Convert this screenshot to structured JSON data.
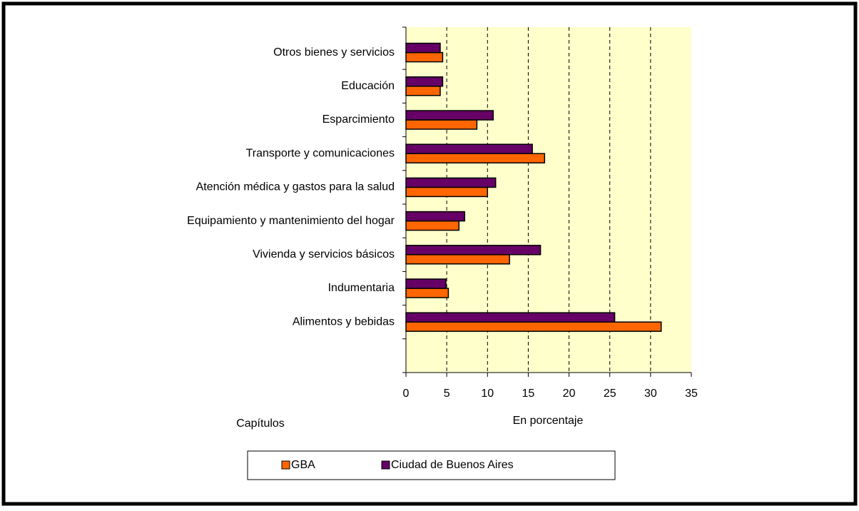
{
  "chart_data": {
    "type": "bar",
    "orientation": "horizontal",
    "x_label": "En porcentaje",
    "y_label": "Capítulos",
    "categories": [
      "Otros bienes y servicios",
      "Educación",
      "Esparcimiento",
      "Transporte y comunicaciones",
      "Atención médica y gastos para la salud",
      "Equipamiento y mantenimiento del hogar",
      "Vivienda y servicios básicos",
      "Indumentaria",
      "Alimentos y bebidas",
      null
    ],
    "series": [
      {
        "name": "GBA",
        "color": "#ff6600",
        "values": [
          4.5,
          4.2,
          8.7,
          17.0,
          10.0,
          6.5,
          12.7,
          5.2,
          31.3,
          null
        ]
      },
      {
        "name": "Ciudad de Buenos Aires",
        "color": "#660066",
        "values": [
          4.2,
          4.5,
          10.7,
          15.5,
          11.0,
          7.2,
          16.5,
          4.9,
          25.6,
          null
        ]
      }
    ],
    "xlim": [
      0,
      35
    ],
    "xticks": [
      0,
      5,
      10,
      15,
      20,
      25,
      30,
      35
    ],
    "grid": true
  }
}
